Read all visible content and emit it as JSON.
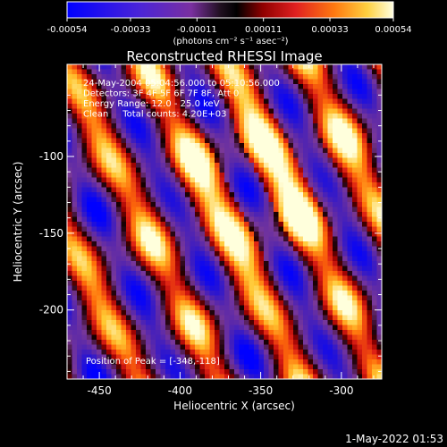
{
  "chart_data": {
    "type": "heatmap",
    "title": "Reconstructed RHESSI Image",
    "xlabel": "Heliocentric X (arcsec)",
    "ylabel": "Heliocentric Y (arcsec)",
    "xlim": [
      -470,
      -275
    ],
    "ylim": [
      -245,
      -40
    ],
    "x_ticks": [
      -450,
      -400,
      -350,
      -300
    ],
    "y_ticks": [
      -100,
      -150,
      -200
    ],
    "colorbar": {
      "range": [
        -0.00054,
        0.00054
      ],
      "ticks": [
        "-0.00054",
        "-0.00033",
        "-0.00011",
        "0.00011",
        "0.00033",
        "0.00054"
      ],
      "unit_label": "(photons cm⁻² s⁻¹ asec⁻²)"
    },
    "info_lines": [
      "24-May-2004 05:04:56.000 to 05:10:56.000",
      "Detectors: 3F 4F 5F 6F 7F 8F, Att 0",
      "Energy Range: 12.0 - 25.0 keV",
      "Clean     Total counts: 4.20E+03"
    ],
    "peak_label": "Position of Peak = [-348,-118]",
    "peak_position": [
      -348,
      -118
    ]
  },
  "timestamp": "1-May-2022 01:53",
  "colors": {
    "background": "#000000",
    "colormap": [
      "#0000ff",
      "#3010a8",
      "#5a2aa0",
      "#7a3898",
      "#3a0a14",
      "#8a0000",
      "#d01010",
      "#ff5000",
      "#ffa020",
      "#ffe040",
      "#ffffd0"
    ]
  }
}
